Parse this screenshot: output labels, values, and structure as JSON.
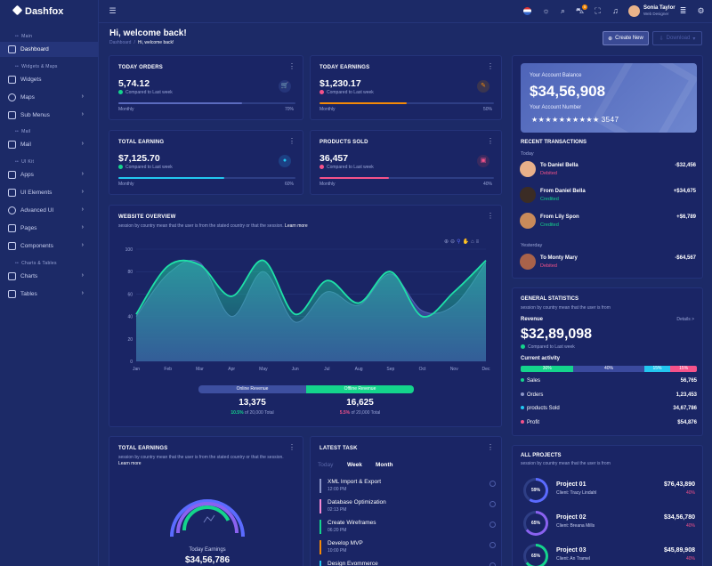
{
  "brand": "Dashfox",
  "sidebar": {
    "cat_main": "Main",
    "cat_widgets": "Widgets & Maps",
    "cat_mail": "Mail",
    "cat_ui": "UI Kit",
    "cat_charts": "Charts & Tables",
    "items": [
      "Dashboard",
      "Widgets",
      "Maps",
      "Sub Menus",
      "Mail",
      "Apps",
      "UI Elements",
      "Advanced UI",
      "Pages",
      "Components",
      "Charts",
      "Tables"
    ]
  },
  "header": {
    "user_name": "Sonia Taylor",
    "user_role": "Web Designer",
    "cart_badge": "5"
  },
  "page": {
    "title": "Hi, welcome back!",
    "crumb_root": "Dashboard",
    "crumb_sep": "/",
    "crumb_current": "Hi, welcome back!",
    "create_btn": "Create New",
    "download_btn": "Download"
  },
  "kpis": [
    {
      "title": "TODAY ORDERS",
      "value": "5,74.12",
      "note": "Compared to Last week",
      "foot": "Monthly",
      "pct": "70%",
      "fill": 0.7,
      "color": "#5b6bbf"
    },
    {
      "title": "TODAY EARNINGS",
      "value": "$1,230.17",
      "note": "Compared to Last week",
      "foot": "Monthly",
      "pct": "50%",
      "fill": 0.5,
      "color": "#f58a07"
    },
    {
      "title": "TOTAL EARNING",
      "value": "$7,125.70",
      "note": "Compared to Last week",
      "foot": "Monthly",
      "pct": "60%",
      "fill": 0.6,
      "color": "#22c7f0"
    },
    {
      "title": "PRODUCTS SOLD",
      "value": "36,457",
      "note": "Compared to Last week",
      "foot": "Monthly",
      "pct": "40%",
      "fill": 0.4,
      "color": "#f5528a"
    }
  ],
  "balance": {
    "label": "Your Account Balance",
    "value": "$34,56,908",
    "num_label": "Your Account Number",
    "mask": "★★★★★★★★★★",
    "last4": "3547"
  },
  "transactions": {
    "title": "RECENT TRANSACTIONS",
    "today": "Today",
    "yesterday": "Yesterday",
    "rows": [
      {
        "name": "To Daniel Bella",
        "status": "Debited",
        "amount": "-$32,456",
        "status_color": "#f5528a"
      },
      {
        "name": "From Daniel Bella",
        "status": "Credited",
        "amount": "+$34,675",
        "status_color": "#14d48c"
      },
      {
        "name": "From Lily Spon",
        "status": "Credited",
        "amount": "+$6,789",
        "status_color": "#14d48c"
      },
      {
        "name": "To Monty Mary",
        "status": "Debited",
        "amount": "-$64,567",
        "status_color": "#f5528a"
      }
    ]
  },
  "overview": {
    "title": "WEBSITE OVERVIEW",
    "desc": "session by country mean that the user is from the stated country or that the session.",
    "learn": "Learn more",
    "online_label": "Online Revenue",
    "offline_label": "Offline Revenue",
    "online_value": "13,375",
    "online_pct": "10.5%",
    "online_of": "of 20,000 Total",
    "offline_value": "16,625",
    "offline_pct": "5.5%",
    "offline_of": "of 20,000 Total"
  },
  "chart_data": {
    "type": "area",
    "categories": [
      "Jan",
      "Feb",
      "Mar",
      "Apr",
      "May",
      "Jun",
      "Jul",
      "Aug",
      "Sep",
      "Oct",
      "Nov",
      "Dec"
    ],
    "ylim": [
      0,
      100
    ],
    "yticks": [
      "0",
      "20",
      "40",
      "60",
      "80",
      "100"
    ],
    "series": [
      {
        "name": "Online Revenue",
        "values": [
          40,
          78,
          88,
          40,
          80,
          35,
          62,
          50,
          78,
          45,
          50,
          88
        ],
        "color": "#3d4fa0"
      },
      {
        "name": "Offline Revenue",
        "values": [
          42,
          85,
          86,
          58,
          90,
          42,
          72,
          52,
          80,
          40,
          62,
          90
        ],
        "color": "#1fd6a0"
      }
    ]
  },
  "stats": {
    "title": "GENERAL STATISTICS",
    "desc": "session by country mean that the user is from",
    "revenue_label": "Revenue",
    "details": "Details >",
    "revenue": "$32,89,098",
    "revenue_note": "Compared to Last week",
    "activity_label": "Current activity",
    "segments": [
      {
        "label": "30%",
        "frac": 0.3,
        "color": "#14d48c"
      },
      {
        "label": "40%",
        "frac": 0.4,
        "color": "#3b4a9e"
      },
      {
        "label": "15%",
        "frac": 0.15,
        "color": "#22c7f0"
      },
      {
        "label": "15%",
        "frac": 0.15,
        "color": "#f5528a"
      }
    ],
    "rows": [
      {
        "label": "Sales",
        "value": "56,765",
        "color": "#14d48c"
      },
      {
        "label": "Orders",
        "value": "1,23,453",
        "color": "#8c96c8"
      },
      {
        "label": "products Sold",
        "value": "34,67,786",
        "color": "#22c7f0"
      },
      {
        "label": "Profit",
        "value": "$54,876",
        "color": "#f5528a"
      }
    ]
  },
  "total_earnings": {
    "title": "TOTAL EARNINGS",
    "desc": "session by country mean that the user is from the stated country or that the session.",
    "learn": "Learn more",
    "center_label": "Today Earnings",
    "center_value": "$34,56,786"
  },
  "task": {
    "title": "LATEST TASK",
    "tabs": [
      "Today",
      "Week",
      "Month"
    ],
    "items": [
      {
        "name": "XML Import & Export",
        "time": "12:00 PM",
        "color": "#8c96c8"
      },
      {
        "name": "Database Optimization",
        "time": "02:13 PM",
        "color": "#f58ad5"
      },
      {
        "name": "Create Wireframes",
        "time": "06:20 PM",
        "color": "#14d48c"
      },
      {
        "name": "Develop MVP",
        "time": "10:00 PM",
        "color": "#f58a07"
      },
      {
        "name": "Design Evommerce",
        "time": "",
        "color": "#22c7f0"
      }
    ]
  },
  "projects": {
    "title": "ALL PROJECTS",
    "desc": "session by country mean that the user is from",
    "items": [
      {
        "name": "Project 01",
        "client": "Client: Tracy Lindahl",
        "pct": "59%",
        "amount": "$76,43,890",
        "change": "40%",
        "color": "#5b6bff",
        "fill": 0.59
      },
      {
        "name": "Project 02",
        "client": "Client: Breana Mills",
        "pct": "65%",
        "amount": "$34,56,780",
        "change": "40%",
        "color": "#8a62f0",
        "fill": 0.65
      },
      {
        "name": "Project 03",
        "client": "Client: An Tramel",
        "pct": "65%",
        "amount": "$45,89,908",
        "change": "40%",
        "color": "#14d48c",
        "fill": 0.65
      }
    ]
  }
}
